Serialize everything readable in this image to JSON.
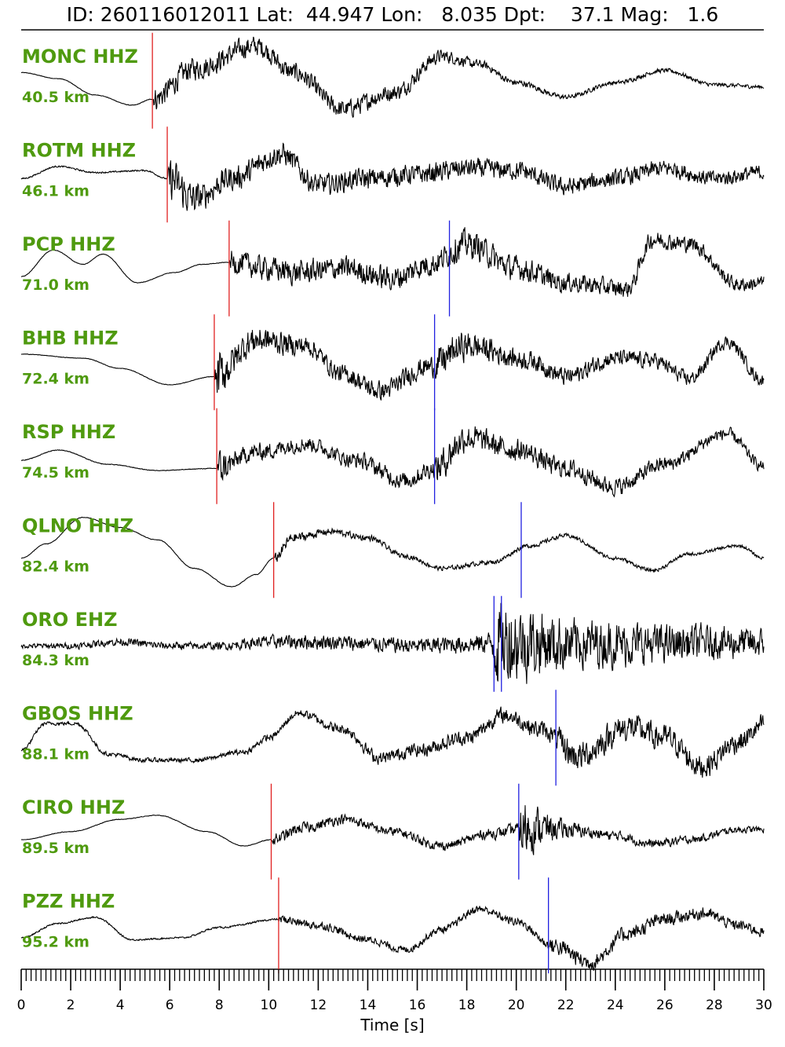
{
  "title": "ID: 260116012011 Lat:  44.947 Lon:   8.035 Dpt:    37.1 Mag:   1.6",
  "colors": {
    "label": "#4f9a0f",
    "trace": "#000000",
    "p_pick": "#e02020",
    "s_pick": "#2020e0"
  },
  "chart_data": {
    "type": "line",
    "title": "ID: 260116012011 Lat:  44.947 Lon:   8.035 Dpt:    37.1 Mag:   1.6",
    "xlabel": "Time [s]",
    "ylabel": "",
    "xlim": [
      0,
      30
    ],
    "x_ticks": [
      0,
      2,
      4,
      6,
      8,
      10,
      12,
      14,
      16,
      18,
      20,
      22,
      24,
      26,
      28,
      30
    ],
    "x_tick_labels": [
      "0",
      "2",
      "4",
      "6",
      "8",
      "10",
      "12",
      "14",
      "16",
      "18",
      "20",
      "22",
      "24",
      "26",
      "28",
      "30"
    ],
    "minor_tick_step": 0.2,
    "grid": false,
    "series": [
      {
        "name": "MONC HHZ",
        "distance": "40.5 km",
        "p_pick": 5.3,
        "s_pick": null,
        "env": [
          [
            0,
            0.2
          ],
          [
            1.5,
            0.05
          ],
          [
            3,
            -0.35
          ],
          [
            4.5,
            -0.6
          ],
          [
            5.3,
            -0.45
          ],
          [
            7,
            0.3
          ],
          [
            9.5,
            0.85
          ],
          [
            11,
            0.2
          ],
          [
            13,
            -0.7
          ],
          [
            15,
            -0.3
          ],
          [
            17,
            0.6
          ],
          [
            18.5,
            0.4
          ],
          [
            20,
            -0.05
          ],
          [
            22,
            -0.4
          ],
          [
            24,
            -0.05
          ],
          [
            26,
            0.25
          ],
          [
            28,
            -0.1
          ],
          [
            30,
            -0.15
          ]
        ],
        "noise": [
          [
            0,
            0.003
          ],
          [
            5.3,
            0.004
          ],
          [
            5.4,
            0.16
          ],
          [
            10,
            0.13
          ],
          [
            14,
            0.12
          ],
          [
            17,
            0.09
          ],
          [
            19,
            0.05
          ],
          [
            22,
            0.03
          ],
          [
            30,
            0.025
          ]
        ]
      },
      {
        "name": "ROTM HHZ",
        "distance": "46.1 km",
        "p_pick": 5.9,
        "s_pick": null,
        "env": [
          [
            0,
            -0.1
          ],
          [
            1.5,
            0.2
          ],
          [
            3,
            0.05
          ],
          [
            5,
            0.1
          ],
          [
            5.9,
            -0.1
          ],
          [
            7,
            -0.6
          ],
          [
            8.5,
            -0.1
          ],
          [
            10.5,
            0.5
          ],
          [
            12,
            -0.25
          ],
          [
            14,
            -0.1
          ],
          [
            16,
            0
          ],
          [
            18,
            0.15
          ],
          [
            20,
            0.1
          ],
          [
            22,
            -0.3
          ],
          [
            24,
            -0.1
          ],
          [
            26,
            0.15
          ],
          [
            28,
            -0.1
          ],
          [
            30,
            0.05
          ]
        ],
        "noise": [
          [
            0,
            0.01
          ],
          [
            5.9,
            0.01
          ],
          [
            6.0,
            0.3
          ],
          [
            7.5,
            0.17
          ],
          [
            12,
            0.14
          ],
          [
            18,
            0.13
          ],
          [
            30,
            0.1
          ]
        ]
      },
      {
        "name": "PCP HHZ",
        "distance": "71.0 km",
        "p_pick": 8.4,
        "s_pick": 17.3,
        "env": [
          [
            0,
            -0.2
          ],
          [
            1.3,
            0.45
          ],
          [
            2.5,
            0.1
          ],
          [
            3.3,
            0.35
          ],
          [
            4.7,
            -0.35
          ],
          [
            6.2,
            -0.1
          ],
          [
            7.3,
            0.1
          ],
          [
            8.4,
            0.15
          ],
          [
            10,
            0
          ],
          [
            11,
            -0.1
          ],
          [
            13,
            0
          ],
          [
            15,
            -0.25
          ],
          [
            16.5,
            0.1
          ],
          [
            18,
            0.6
          ],
          [
            20,
            0
          ],
          [
            22,
            -0.35
          ],
          [
            24.5,
            -0.5
          ],
          [
            25.5,
            0.7
          ],
          [
            27,
            0.6
          ],
          [
            29,
            -0.4
          ],
          [
            30,
            -0.35
          ]
        ],
        "noise": [
          [
            0,
            0.003
          ],
          [
            8.4,
            0.003
          ],
          [
            8.5,
            0.16
          ],
          [
            17.3,
            0.16
          ],
          [
            17.4,
            0.2
          ],
          [
            22,
            0.13
          ],
          [
            30,
            0.09
          ]
        ]
      },
      {
        "name": "BHB HHZ",
        "distance": "72.4 km",
        "p_pick": 7.8,
        "s_pick": 16.7,
        "env": [
          [
            0,
            0.2
          ],
          [
            2.5,
            0.1
          ],
          [
            4,
            -0.15
          ],
          [
            6,
            -0.55
          ],
          [
            7.8,
            -0.35
          ],
          [
            9.5,
            0.55
          ],
          [
            11.5,
            0.4
          ],
          [
            13,
            -0.3
          ],
          [
            14.5,
            -0.7
          ],
          [
            16.5,
            -0.1
          ],
          [
            18,
            0.4
          ],
          [
            20.5,
            0.05
          ],
          [
            22,
            -0.35
          ],
          [
            24,
            0.1
          ],
          [
            25.5,
            0.05
          ],
          [
            27,
            -0.4
          ],
          [
            28.5,
            0.5
          ],
          [
            30,
            -0.45
          ]
        ],
        "noise": [
          [
            0,
            0.003
          ],
          [
            7.8,
            0.003
          ],
          [
            7.9,
            0.35
          ],
          [
            8.6,
            0.2
          ],
          [
            12,
            0.12
          ],
          [
            16.7,
            0.14
          ],
          [
            16.8,
            0.22
          ],
          [
            20,
            0.13
          ],
          [
            30,
            0.08
          ]
        ]
      },
      {
        "name": "RSP HHZ",
        "distance": "74.5 km",
        "p_pick": 7.9,
        "s_pick": 16.7,
        "env": [
          [
            0,
            -0.1
          ],
          [
            1.5,
            0.15
          ],
          [
            3.5,
            -0.2
          ],
          [
            5.5,
            -0.35
          ],
          [
            7.9,
            -0.3
          ],
          [
            9.5,
            0.1
          ],
          [
            11.5,
            0.3
          ],
          [
            13.5,
            -0.1
          ],
          [
            15.5,
            -0.6
          ],
          [
            16.7,
            -0.3
          ],
          [
            18,
            0.45
          ],
          [
            20,
            0.15
          ],
          [
            22,
            -0.3
          ],
          [
            24,
            -0.75
          ],
          [
            26,
            -0.2
          ],
          [
            28.5,
            0.55
          ],
          [
            30,
            -0.25
          ]
        ],
        "noise": [
          [
            0,
            0.004
          ],
          [
            7.9,
            0.004
          ],
          [
            8.0,
            0.25
          ],
          [
            8.7,
            0.12
          ],
          [
            12,
            0.1
          ],
          [
            16.7,
            0.12
          ],
          [
            16.8,
            0.22
          ],
          [
            19,
            0.15
          ],
          [
            30,
            0.07
          ]
        ]
      },
      {
        "name": "QLNO HHZ",
        "distance": "82.4 km",
        "p_pick": 10.2,
        "s_pick": 20.2,
        "env": [
          [
            0,
            -0.2
          ],
          [
            1,
            0.15
          ],
          [
            2.5,
            0.8
          ],
          [
            4,
            0.55
          ],
          [
            5.5,
            0.25
          ],
          [
            7,
            -0.45
          ],
          [
            8.5,
            -0.9
          ],
          [
            9.5,
            -0.6
          ],
          [
            10.2,
            -0.2
          ],
          [
            11,
            0.3
          ],
          [
            12.5,
            0.45
          ],
          [
            14,
            0.3
          ],
          [
            15.5,
            -0.15
          ],
          [
            17,
            -0.45
          ],
          [
            19,
            -0.3
          ],
          [
            20.5,
            0.1
          ],
          [
            22,
            0.35
          ],
          [
            24,
            -0.2
          ],
          [
            25.5,
            -0.5
          ],
          [
            27,
            -0.1
          ],
          [
            29,
            0.1
          ],
          [
            30,
            -0.2
          ]
        ],
        "noise": [
          [
            0,
            0.003
          ],
          [
            10.2,
            0.004
          ],
          [
            10.3,
            0.08
          ],
          [
            12,
            0.05
          ],
          [
            16,
            0.03
          ],
          [
            20.2,
            0.03
          ],
          [
            24,
            0.025
          ],
          [
            30,
            0.02
          ]
        ]
      },
      {
        "name": "ORO EHZ",
        "distance": "84.3 km",
        "p_pick": null,
        "s_pick": 19.1,
        "s_pick2": 19.4,
        "env": [
          [
            0,
            -0.05
          ],
          [
            2,
            -0.05
          ],
          [
            4,
            0.05
          ],
          [
            6,
            -0.05
          ],
          [
            8,
            -0.05
          ],
          [
            10,
            0.05
          ],
          [
            12,
            0.05
          ],
          [
            14,
            0
          ],
          [
            16,
            -0.05
          ],
          [
            18,
            0
          ],
          [
            20,
            0.05
          ],
          [
            22,
            0
          ],
          [
            24,
            0
          ],
          [
            26,
            0
          ],
          [
            28,
            0.05
          ],
          [
            30,
            0
          ]
        ],
        "noise": [
          [
            0,
            0.03
          ],
          [
            4,
            0.05
          ],
          [
            8,
            0.05
          ],
          [
            11,
            0.1
          ],
          [
            15,
            0.1
          ],
          [
            18,
            0.12
          ],
          [
            19,
            0.15
          ],
          [
            19.2,
            0.6
          ],
          [
            22,
            0.35
          ],
          [
            26,
            0.25
          ],
          [
            30,
            0.2
          ]
        ]
      },
      {
        "name": "GBOS HHZ",
        "distance": "88.1 km",
        "p_pick": null,
        "s_pick": 21.6,
        "env": [
          [
            0,
            -0.3
          ],
          [
            1,
            0.35
          ],
          [
            2.2,
            0.35
          ],
          [
            3.5,
            -0.4
          ],
          [
            5,
            -0.55
          ],
          [
            7,
            -0.55
          ],
          [
            9,
            -0.35
          ],
          [
            10,
            0
          ],
          [
            11.2,
            0.6
          ],
          [
            13,
            0.2
          ],
          [
            14.5,
            -0.5
          ],
          [
            16,
            -0.3
          ],
          [
            18,
            0
          ],
          [
            19.5,
            0.55
          ],
          [
            21,
            0.2
          ],
          [
            22.5,
            -0.45
          ],
          [
            24.5,
            0.25
          ],
          [
            26,
            0
          ],
          [
            27.5,
            -0.7
          ],
          [
            29,
            -0.1
          ],
          [
            30,
            0.3
          ]
        ],
        "noise": [
          [
            0,
            0.02
          ],
          [
            4,
            0.03
          ],
          [
            8,
            0.03
          ],
          [
            11,
            0.05
          ],
          [
            14,
            0.08
          ],
          [
            18,
            0.1
          ],
          [
            21.6,
            0.12
          ],
          [
            21.7,
            0.2
          ],
          [
            30,
            0.14
          ]
        ]
      },
      {
        "name": "CIRO HHZ",
        "distance": "89.5 km",
        "p_pick": 10.1,
        "s_pick": 20.1,
        "env": [
          [
            0,
            -0.2
          ],
          [
            2,
            0
          ],
          [
            4,
            0.3
          ],
          [
            5.5,
            0.4
          ],
          [
            7.5,
            0
          ],
          [
            9,
            -0.35
          ],
          [
            10.1,
            -0.2
          ],
          [
            11.5,
            0.1
          ],
          [
            13,
            0.3
          ],
          [
            15,
            0
          ],
          [
            17,
            -0.35
          ],
          [
            19,
            -0.05
          ],
          [
            20.5,
            0.1
          ],
          [
            22,
            0.05
          ],
          [
            24,
            -0.1
          ],
          [
            25.5,
            -0.3
          ],
          [
            27,
            -0.2
          ],
          [
            29,
            0.05
          ],
          [
            30,
            0.05
          ]
        ],
        "noise": [
          [
            0,
            0.003
          ],
          [
            10.1,
            0.004
          ],
          [
            10.2,
            0.08
          ],
          [
            14,
            0.06
          ],
          [
            18,
            0.06
          ],
          [
            20.1,
            0.08
          ],
          [
            20.2,
            0.4
          ],
          [
            21.5,
            0.15
          ],
          [
            23,
            0.07
          ],
          [
            30,
            0.04
          ]
        ]
      },
      {
        "name": "PZZ HHZ",
        "distance": "95.2 km",
        "p_pick": 10.4,
        "s_pick": 21.3,
        "env": [
          [
            0,
            -0.3
          ],
          [
            1.5,
            0.05
          ],
          [
            3,
            0.2
          ],
          [
            4.5,
            -0.35
          ],
          [
            6.5,
            -0.3
          ],
          [
            8,
            -0.05
          ],
          [
            10.4,
            0.15
          ],
          [
            12,
            0
          ],
          [
            14,
            -0.35
          ],
          [
            15.5,
            -0.6
          ],
          [
            17,
            -0.1
          ],
          [
            18.5,
            0.4
          ],
          [
            20,
            0.1
          ],
          [
            21.5,
            -0.5
          ],
          [
            23,
            -0.9
          ],
          [
            24.5,
            -0.2
          ],
          [
            26,
            0.15
          ],
          [
            27.5,
            0.3
          ],
          [
            29,
            0
          ],
          [
            30,
            -0.15
          ]
        ],
        "noise": [
          [
            0,
            0.01
          ],
          [
            10.4,
            0.012
          ],
          [
            10.5,
            0.06
          ],
          [
            14,
            0.05
          ],
          [
            18,
            0.05
          ],
          [
            21.3,
            0.06
          ],
          [
            21.4,
            0.12
          ],
          [
            24,
            0.1
          ],
          [
            30,
            0.07
          ]
        ]
      }
    ]
  }
}
